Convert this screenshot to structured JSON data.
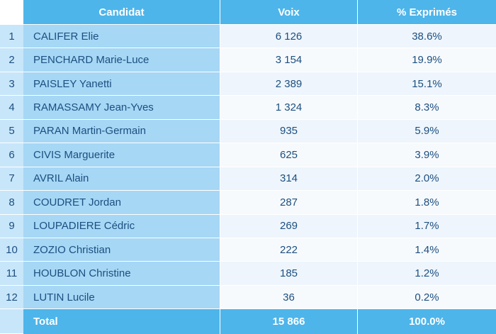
{
  "headers": {
    "candidat": "Candidat",
    "voix": "Voix",
    "pct": "% Exprimés"
  },
  "rows": [
    {
      "rank": "1",
      "name": "CALIFER Elie",
      "voix": "6 126",
      "pct": "38.6%"
    },
    {
      "rank": "2",
      "name": "PENCHARD Marie-Luce",
      "voix": "3 154",
      "pct": "19.9%"
    },
    {
      "rank": "3",
      "name": "PAISLEY Yanetti",
      "voix": "2 389",
      "pct": "15.1%"
    },
    {
      "rank": "4",
      "name": "RAMASSAMY Jean-Yves",
      "voix": "1 324",
      "pct": "8.3%"
    },
    {
      "rank": "5",
      "name": "PARAN Martin-Germain",
      "voix": "935",
      "pct": "5.9%"
    },
    {
      "rank": "6",
      "name": "CIVIS Marguerite",
      "voix": "625",
      "pct": "3.9%"
    },
    {
      "rank": "7",
      "name": "AVRIL Alain",
      "voix": "314",
      "pct": "2.0%"
    },
    {
      "rank": "8",
      "name": "COUDRET Jordan",
      "voix": "287",
      "pct": "1.8%"
    },
    {
      "rank": "9",
      "name": "LOUPADIERE Cédric",
      "voix": "269",
      "pct": "1.7%"
    },
    {
      "rank": "10",
      "name": "ZOZIO Christian",
      "voix": "222",
      "pct": "1.4%"
    },
    {
      "rank": "11",
      "name": "HOUBLON Christine",
      "voix": "185",
      "pct": "1.2%"
    },
    {
      "rank": "12",
      "name": "LUTIN Lucile",
      "voix": "36",
      "pct": "0.2%"
    }
  ],
  "total": {
    "label": "Total",
    "voix": "15 866",
    "pct": "100.0%"
  },
  "colors": {
    "header": "#4db5ea",
    "name_column": "#a6d7f5",
    "rank_column": "#c8e6fa",
    "value_cells": "#eef5fc",
    "text": "#1c4f80"
  }
}
